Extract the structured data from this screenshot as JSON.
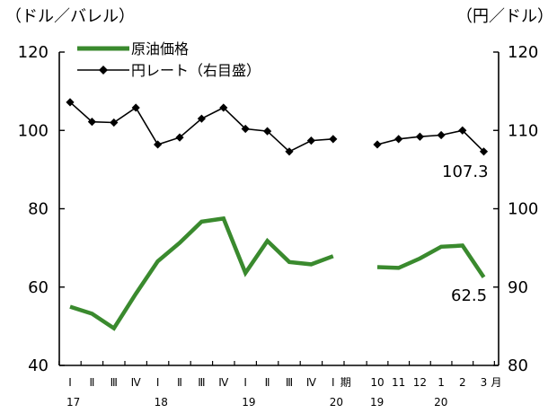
{
  "chart_data": {
    "type": "line",
    "title": "",
    "left_unit": "（ドル／バレル）",
    "right_unit": "（円／ドル）",
    "left_axis": {
      "ylim": [
        40,
        120
      ],
      "ticks": [
        "40",
        "60",
        "80",
        "100",
        "120"
      ]
    },
    "right_axis": {
      "ylim": [
        80,
        120
      ],
      "ticks": [
        "80",
        "90",
        "100",
        "110",
        "120"
      ]
    },
    "grid": false,
    "legend_placement": "top-left",
    "x_quarterly": {
      "labels": [
        "Ⅰ",
        "Ⅱ",
        "Ⅲ",
        "Ⅳ",
        "Ⅰ",
        "Ⅱ",
        "Ⅲ",
        "Ⅳ",
        "Ⅰ",
        "Ⅱ",
        "Ⅲ",
        "Ⅳ",
        "Ⅰ"
      ],
      "years": [
        {
          "index": 0,
          "label": "17"
        },
        {
          "index": 4,
          "label": "18"
        },
        {
          "index": 8,
          "label": "19"
        },
        {
          "index": 12,
          "label": "20"
        }
      ],
      "period_label": "期"
    },
    "x_monthly": {
      "labels": [
        "10",
        "11",
        "12",
        "1",
        "2",
        "3"
      ],
      "years": [
        {
          "index": 0,
          "label": "19"
        },
        {
          "index": 3,
          "label": "20"
        }
      ],
      "period_label": "月"
    },
    "series": [
      {
        "name": "原油価格",
        "axis": "left",
        "color": "#3a8a2e",
        "quarterly": [
          55.0,
          53.2,
          49.5,
          58.3,
          66.6,
          71.3,
          76.7,
          77.5,
          63.6,
          71.8,
          66.4,
          65.8,
          67.9
        ],
        "monthly": [
          65.1,
          64.9,
          67.3,
          70.3,
          70.6,
          62.5
        ]
      },
      {
        "name": "円レート（右目盛）",
        "axis": "right",
        "color": "#000000",
        "marker": "diamond",
        "quarterly": [
          113.6,
          111.1,
          111.0,
          112.9,
          108.2,
          109.1,
          111.5,
          112.9,
          110.2,
          109.9,
          107.3,
          108.7,
          108.9
        ],
        "monthly": [
          108.2,
          108.9,
          109.2,
          109.4,
          110.0,
          107.3
        ]
      }
    ],
    "annotations": [
      "107.3",
      "62.5"
    ]
  }
}
